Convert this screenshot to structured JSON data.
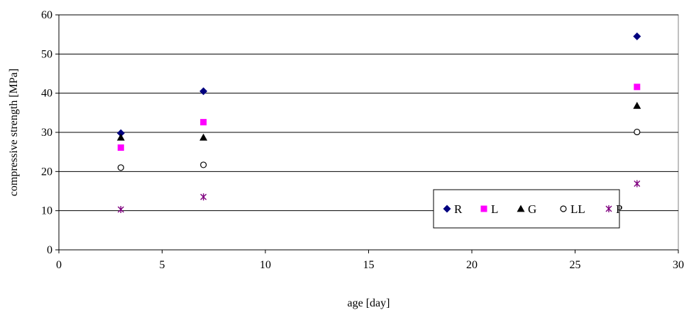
{
  "chart_data": {
    "type": "scatter",
    "title": "",
    "xlabel": "age [day]",
    "ylabel": "compressive strength [MPa]",
    "xlim": [
      0,
      30
    ],
    "ylim": [
      0,
      60
    ],
    "xticks": [
      0,
      5,
      10,
      15,
      20,
      25,
      30
    ],
    "yticks": [
      0,
      10,
      20,
      30,
      40,
      50,
      60
    ],
    "grid": "horizontal",
    "legend": "bottom-right",
    "series": [
      {
        "name": "R",
        "marker": "diamond",
        "color": "#00007f",
        "x": [
          3,
          7,
          28
        ],
        "y": [
          29.8,
          40.5,
          54.5
        ]
      },
      {
        "name": "L",
        "marker": "square",
        "color": "#ff00ff",
        "x": [
          3,
          7,
          28
        ],
        "y": [
          26.1,
          32.6,
          41.6
        ]
      },
      {
        "name": "G",
        "marker": "triangle",
        "color": "#000000",
        "x": [
          3,
          7,
          28
        ],
        "y": [
          28.7,
          28.7,
          36.8
        ]
      },
      {
        "name": "LL",
        "marker": "circle",
        "color": "#000000",
        "x": [
          3,
          7,
          28
        ],
        "y": [
          21.0,
          21.7,
          30.1
        ]
      },
      {
        "name": "P",
        "marker": "star",
        "color": "#7f007f",
        "x": [
          3,
          7,
          28
        ],
        "y": [
          10.3,
          13.5,
          16.9
        ]
      }
    ]
  }
}
